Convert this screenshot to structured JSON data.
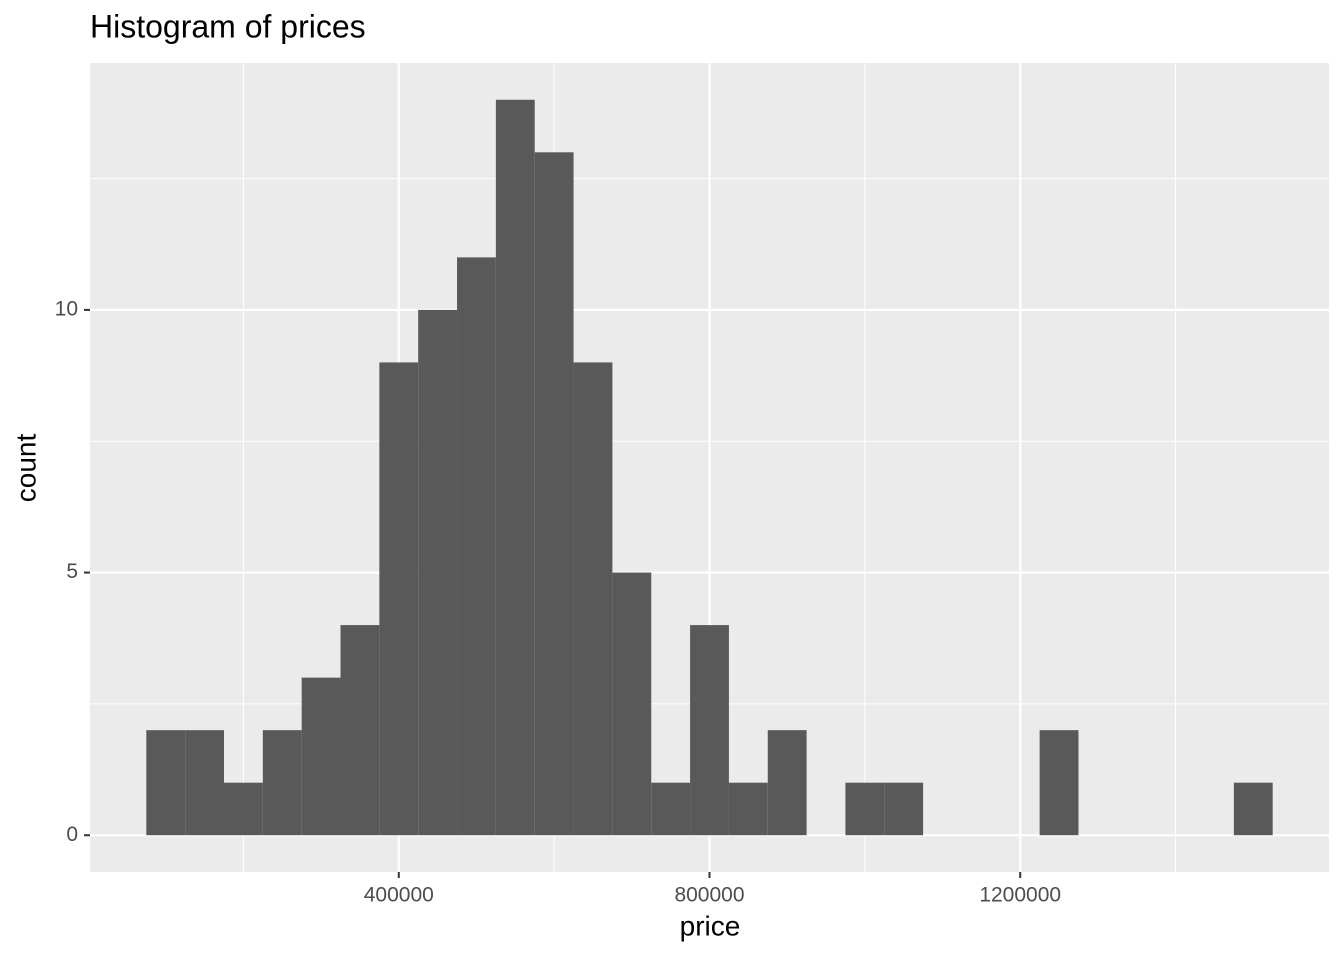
{
  "chart_data": {
    "type": "histogram",
    "title": "Histogram of prices",
    "x_label": "price",
    "y_label": "count",
    "bins": [
      75000,
      125000,
      175000,
      225000,
      275000,
      325000,
      375000,
      425000,
      475000,
      525000,
      575000,
      625000,
      675000,
      725000,
      775000,
      825000,
      875000,
      925000,
      975000,
      1025000,
      1075000,
      1125000,
      1175000,
      1225000,
      1275000,
      1325000,
      1375000,
      1425000,
      1475000,
      1525000
    ],
    "values": [
      2,
      2,
      1,
      2,
      3,
      4,
      9,
      10,
      11,
      14,
      13,
      9,
      5,
      1,
      4,
      1,
      2,
      0,
      1,
      1,
      0,
      0,
      0,
      2,
      0,
      0,
      0,
      0,
      1
    ],
    "color": "#595959",
    "xlim": [
      2500,
      1597500
    ],
    "xticks": [
      400000,
      800000,
      1200000
    ],
    "x_minor_ticks": [
      200000,
      600000,
      1000000,
      1400000
    ],
    "ylim": [
      -0.7,
      14.7
    ],
    "yticks": [
      0,
      5,
      10
    ],
    "y_minor_ticks": [
      2.5,
      7.5,
      12.5
    ],
    "grid": true
  }
}
